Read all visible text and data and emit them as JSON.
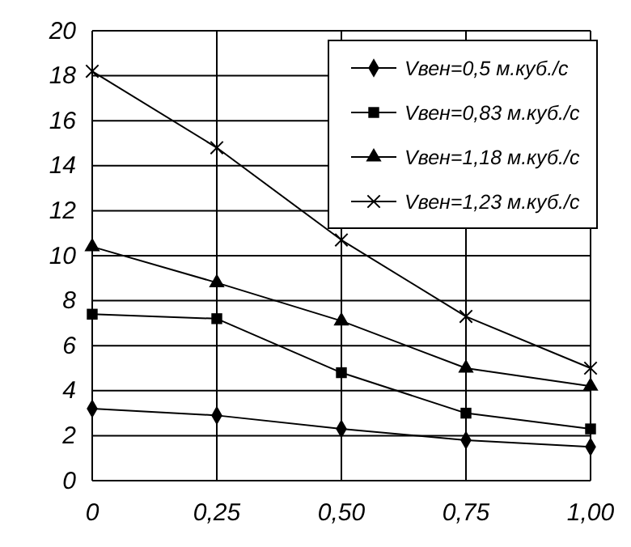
{
  "chart_data": {
    "type": "line",
    "x": [
      0,
      0.25,
      0.5,
      0.75,
      1
    ],
    "xlim": [
      0,
      1
    ],
    "xticks": [
      {
        "value": 0,
        "label": "0"
      },
      {
        "value": 0.25,
        "label": "0,25"
      },
      {
        "value": 0.5,
        "label": "0,50"
      },
      {
        "value": 0.75,
        "label": "0,75"
      },
      {
        "value": 1,
        "label": "1,00"
      }
    ],
    "ylim": [
      0,
      20
    ],
    "yticks": [
      0,
      2,
      4,
      6,
      8,
      10,
      12,
      14,
      16,
      18,
      20
    ],
    "grid": true,
    "legend": "top right",
    "line_style": "solid",
    "series": [
      {
        "name": "Vвен=0,5 м.куб./с",
        "color": "#000000",
        "marker": "diamond",
        "values": [
          3.2,
          2.9,
          2.3,
          1.8,
          1.5
        ]
      },
      {
        "name": "Vвен=0,83 м.куб./с",
        "color": "#000000",
        "marker": "square",
        "values": [
          7.4,
          7.2,
          4.8,
          3.0,
          2.3
        ]
      },
      {
        "name": "Vвен=1,18 м.куб./с",
        "color": "#000000",
        "marker": "triangle",
        "values": [
          10.4,
          8.8,
          7.1,
          5.0,
          4.2
        ]
      },
      {
        "name": "Vвен=1,23 м.куб./с",
        "color": "#000000",
        "marker": "cross",
        "values": [
          18.2,
          14.8,
          10.7,
          7.3,
          5.0
        ]
      }
    ]
  }
}
